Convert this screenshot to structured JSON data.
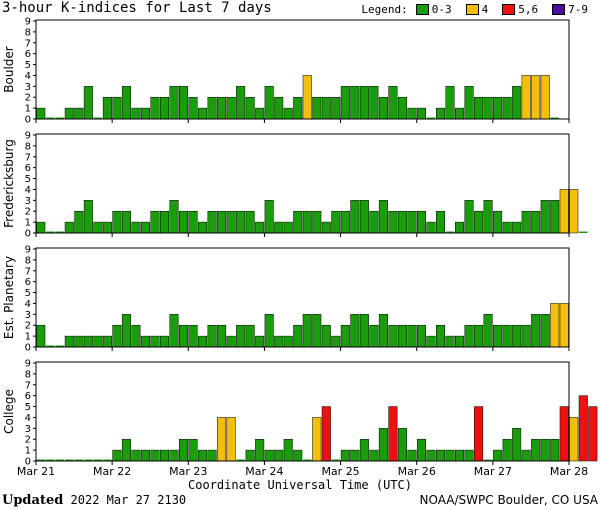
{
  "title": "3-hour K-indices for Last 7 days",
  "legend": {
    "label": "Legend:",
    "items": [
      {
        "label": "0-3",
        "color": "#1a9c0c"
      },
      {
        "label": "4",
        "color": "#f2bf0f"
      },
      {
        "label": "5,6",
        "color": "#ee1111"
      },
      {
        "label": "7-9",
        "color": "#4a0fa0"
      }
    ]
  },
  "x_axis_title": "Coordinate Universal Time (UTC)",
  "updated": {
    "label": "Updated",
    "value": "2022 Mar 27 2130"
  },
  "credit": "NOAA/SWPC Boulder, CO USA",
  "chart_data": {
    "type": "bar",
    "ylim": [
      0,
      9
    ],
    "yticks": [
      "0",
      "1",
      "2",
      "3",
      "4",
      "5",
      "6",
      "7",
      "8",
      "9"
    ],
    "xticks": [
      "Mar 21",
      "Mar 22",
      "Mar 23",
      "Mar 24",
      "Mar 25",
      "Mar 26",
      "Mar 27",
      "Mar 28"
    ],
    "intervals_per_day": 8,
    "panels": [
      {
        "name": "Boulder",
        "values": [
          1,
          0,
          0,
          1,
          1,
          3,
          0,
          2,
          2,
          3,
          1,
          1,
          2,
          2,
          3,
          3,
          2,
          1,
          2,
          2,
          2,
          3,
          2,
          1,
          3,
          2,
          1,
          2,
          4,
          2,
          2,
          2,
          3,
          3,
          3,
          3,
          2,
          3,
          2,
          1,
          1,
          0,
          1,
          3,
          1,
          3,
          2,
          2,
          2,
          2,
          3,
          4,
          4,
          4,
          0
        ]
      },
      {
        "name": "Fredericksburg",
        "values": [
          1,
          0,
          0,
          1,
          2,
          3,
          1,
          1,
          2,
          2,
          1,
          1,
          2,
          2,
          3,
          2,
          2,
          1,
          2,
          2,
          2,
          2,
          2,
          1,
          3,
          1,
          1,
          2,
          2,
          2,
          1,
          2,
          2,
          3,
          3,
          2,
          3,
          2,
          2,
          2,
          2,
          1,
          2,
          0,
          1,
          3,
          2,
          3,
          2,
          1,
          1,
          2,
          2,
          3,
          3,
          4,
          4,
          0
        ]
      },
      {
        "name": "Est. Planetary",
        "values": [
          2,
          0,
          0,
          1,
          1,
          1,
          1,
          1,
          2,
          3,
          2,
          1,
          1,
          1,
          3,
          2,
          2,
          1,
          2,
          2,
          1,
          2,
          2,
          1,
          3,
          1,
          1,
          2,
          3,
          3,
          2,
          1,
          2,
          3,
          3,
          2,
          3,
          2,
          2,
          2,
          2,
          1,
          2,
          1,
          1,
          2,
          2,
          3,
          2,
          2,
          2,
          2,
          3,
          3,
          4,
          4
        ]
      },
      {
        "name": "College",
        "values": [
          0,
          0,
          0,
          0,
          0,
          0,
          0,
          0,
          1,
          2,
          1,
          1,
          1,
          1,
          1,
          2,
          2,
          1,
          1,
          4,
          4,
          0,
          1,
          2,
          1,
          1,
          2,
          1,
          0,
          4,
          5,
          0,
          1,
          1,
          2,
          1,
          3,
          5,
          3,
          1,
          2,
          1,
          1,
          1,
          1,
          1,
          5,
          0,
          1,
          2,
          3,
          1,
          2,
          2,
          2,
          5,
          4,
          6,
          5
        ]
      }
    ]
  }
}
